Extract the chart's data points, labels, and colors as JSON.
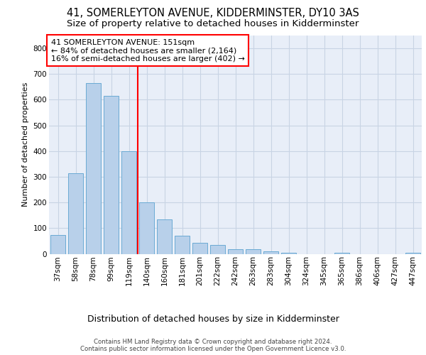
{
  "title_line1": "41, SOMERLEYTON AVENUE, KIDDERMINSTER, DY10 3AS",
  "title_line2": "Size of property relative to detached houses in Kidderminster",
  "xlabel": "Distribution of detached houses by size in Kidderminster",
  "ylabel": "Number of detached properties",
  "footer": "Contains HM Land Registry data © Crown copyright and database right 2024.\nContains public sector information licensed under the Open Government Licence v3.0.",
  "categories": [
    "37sqm",
    "58sqm",
    "78sqm",
    "99sqm",
    "119sqm",
    "140sqm",
    "160sqm",
    "181sqm",
    "201sqm",
    "222sqm",
    "242sqm",
    "263sqm",
    "283sqm",
    "304sqm",
    "324sqm",
    "345sqm",
    "365sqm",
    "386sqm",
    "406sqm",
    "427sqm",
    "447sqm"
  ],
  "values": [
    72,
    315,
    665,
    615,
    400,
    200,
    135,
    70,
    42,
    35,
    18,
    17,
    10,
    5,
    0,
    0,
    5,
    0,
    0,
    0,
    5
  ],
  "bar_color": "#b8d0ea",
  "bar_edge_color": "#6aaad4",
  "red_line_index": 5,
  "annotation_text": "41 SOMERLEYTON AVENUE: 151sqm\n← 84% of detached houses are smaller (2,164)\n16% of semi-detached houses are larger (402) →",
  "annotation_box_facecolor": "white",
  "annotation_box_edgecolor": "red",
  "red_line_color": "red",
  "ylim": [
    0,
    850
  ],
  "yticks": [
    0,
    100,
    200,
    300,
    400,
    500,
    600,
    700,
    800
  ],
  "grid_color": "#c8d4e4",
  "bg_color": "#e8eef8",
  "title_fontsize": 10.5,
  "subtitle_fontsize": 9.5,
  "ylabel_fontsize": 8,
  "xlabel_fontsize": 9,
  "tick_fontsize": 7.5,
  "annot_fontsize": 8
}
